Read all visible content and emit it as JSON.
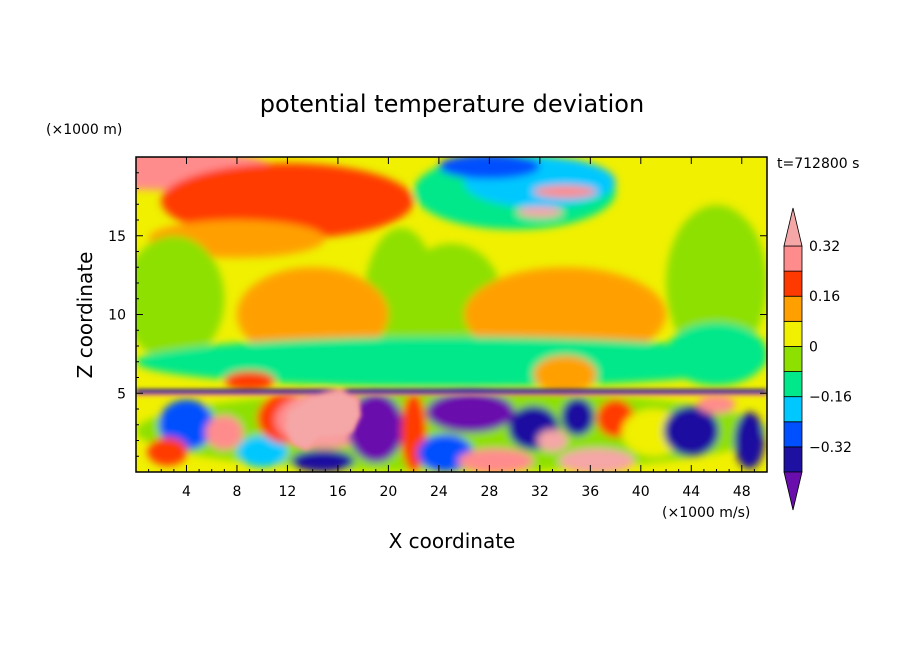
{
  "chart_data": {
    "type": "heatmap",
    "title": "potential temperature deviation",
    "xlabel": "X coordinate",
    "ylabel": "Z coordinate",
    "x_unit": "(×1000 m/s)",
    "y_unit": "(×1000 m)",
    "time_label": "t=712800 s",
    "xlim": [
      0,
      50
    ],
    "ylim": [
      0,
      20
    ],
    "x_ticks": [
      4,
      8,
      12,
      16,
      20,
      24,
      28,
      32,
      36,
      40,
      44,
      48
    ],
    "y_ticks": [
      5,
      10,
      15
    ],
    "colorbar": {
      "levels": [
        -0.48,
        -0.4,
        -0.32,
        -0.24,
        -0.16,
        -0.08,
        0,
        0.08,
        0.16,
        0.24,
        0.32,
        0.4
      ],
      "labels": [
        -0.32,
        -0.16,
        0,
        0.16,
        0.32
      ],
      "label_text": [
        "−0.32",
        "−0.16",
        "0",
        "0.16",
        "0.32"
      ],
      "colors": [
        "#6a0dad",
        "#1e10a0",
        "#0050ff",
        "#00c8ff",
        "#00e88a",
        "#8ee000",
        "#f0f000",
        "#ffa000",
        "#ff3a00",
        "#ff8c8c",
        "#f5a6a6"
      ]
    },
    "regions": [
      {
        "desc": "upper layer background",
        "x": [
          0,
          50
        ],
        "y": [
          5.2,
          20
        ],
        "value": 0.02
      },
      {
        "desc": "warm top-left",
        "x": [
          2,
          22
        ],
        "y": [
          15,
          19.5
        ],
        "value": 0.2
      },
      {
        "desc": "warm top strip",
        "x": [
          2,
          18
        ],
        "y": [
          18.5,
          19.8
        ],
        "value": 0.28
      },
      {
        "desc": "cool mid band",
        "x": [
          0,
          50
        ],
        "y": [
          5.5,
          9
        ],
        "value": -0.08
      },
      {
        "desc": "cold upper right",
        "x": [
          24,
          40
        ],
        "y": [
          15.5,
          19.8
        ],
        "value": -0.25
      },
      {
        "desc": "boundary layer cold",
        "x": [
          20,
          34
        ],
        "y": [
          0,
          5
        ],
        "value": -0.4
      },
      {
        "desc": "boundary layer warm blob",
        "x": [
          11,
          18
        ],
        "y": [
          1.2,
          5
        ],
        "value": 0.4
      }
    ]
  }
}
